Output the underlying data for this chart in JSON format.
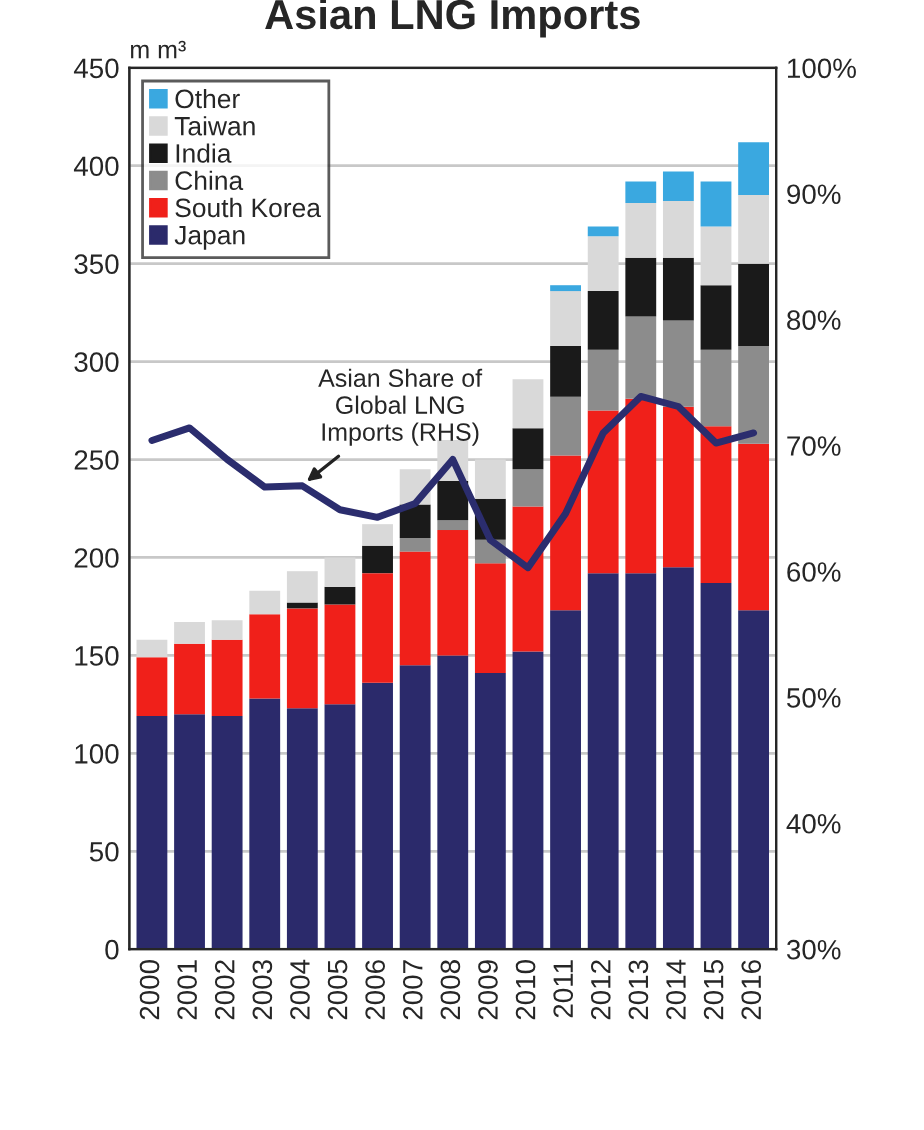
{
  "chart_data": {
    "type": "bar",
    "title": "Asian LNG Imports",
    "ylabel": "m m³",
    "stacked": true,
    "categories": [
      "2000",
      "2001",
      "2002",
      "2003",
      "2004",
      "2005",
      "2006",
      "2007",
      "2008",
      "2009",
      "2010",
      "2011",
      "2012",
      "2013",
      "2014",
      "2015",
      "2016"
    ],
    "series": [
      {
        "name": "Japan",
        "color": "#2b2a6b",
        "values": [
          119,
          120,
          119,
          128,
          123,
          125,
          136,
          145,
          150,
          141,
          152,
          173,
          192,
          192,
          195,
          187,
          173
        ]
      },
      {
        "name": "South Korea",
        "color": "#f0201a",
        "values": [
          30,
          36,
          39,
          43,
          51,
          51,
          56,
          58,
          64,
          56,
          74,
          79,
          83,
          89,
          82,
          80,
          85
        ]
      },
      {
        "name": "China",
        "color": "#8c8c8c",
        "values": [
          0,
          0,
          0,
          0,
          0,
          0,
          0,
          7,
          5,
          12,
          19,
          30,
          31,
          42,
          44,
          39,
          50
        ]
      },
      {
        "name": "India",
        "color": "#1a1a1a",
        "values": [
          0,
          0,
          0,
          0,
          3,
          9,
          14,
          17,
          20,
          21,
          21,
          26,
          30,
          30,
          32,
          33,
          42
        ]
      },
      {
        "name": "Taiwan",
        "color": "#d9d9d9",
        "values": [
          9,
          11,
          10,
          12,
          16,
          15,
          11,
          18,
          21,
          20,
          25,
          28,
          28,
          28,
          29,
          30,
          35
        ]
      },
      {
        "name": "Other",
        "color": "#3aa8e0",
        "values": [
          0,
          0,
          0,
          0,
          0,
          0,
          0,
          0,
          0,
          0,
          0,
          3,
          5,
          11,
          15,
          23,
          27
        ]
      },
      {
        "type": "line",
        "axis": "y2",
        "color": "#2b2d6e",
        "values": [
          70.4,
          71.4,
          68.9,
          66.7,
          66.8,
          64.9,
          64.3,
          65.4,
          68.9,
          62.5,
          60.3,
          64.6,
          71.0,
          73.9,
          73.1,
          70.2,
          71.0
        ]
      }
    ],
    "ylim": [
      0,
      450
    ],
    "yticks": [
      0,
      50,
      100,
      150,
      200,
      250,
      300,
      350,
      400,
      450
    ],
    "y2lim": [
      30,
      100
    ],
    "y2ticks": [
      {
        "value": 30,
        "label": "30%"
      },
      {
        "value": 40,
        "label": "40%"
      },
      {
        "value": 50,
        "label": "50%"
      },
      {
        "value": 60,
        "label": "60%"
      },
      {
        "value": 70,
        "label": "70%"
      },
      {
        "value": 80,
        "label": "80%"
      },
      {
        "value": 90,
        "label": "90%"
      },
      {
        "value": 100,
        "label": "100%"
      }
    ],
    "grid": "y",
    "legend": "top left",
    "annotations": [
      {
        "text": "Asian Share of\nGlobal LNG\nImports (RHS)",
        "x": "2004",
        "y": 237
      }
    ]
  }
}
